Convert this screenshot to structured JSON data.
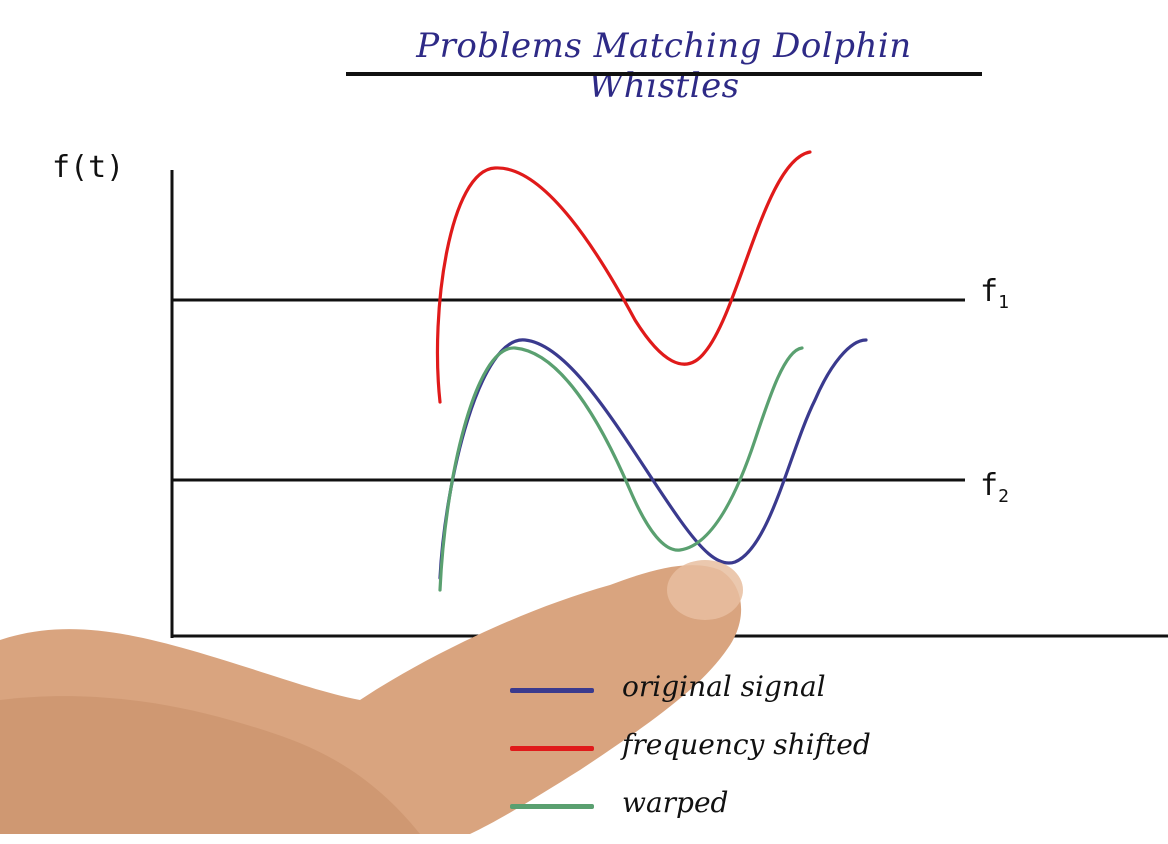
{
  "diagram": {
    "title": "Problems Matching Dolphin Whistles",
    "y_axis_label": "f(t)",
    "reference_lines": [
      {
        "label": "f",
        "subscript": "1"
      },
      {
        "label": "f",
        "subscript": "2"
      }
    ],
    "legend": [
      {
        "label": "original signal",
        "color": "#3a3a8e"
      },
      {
        "label": "frequency shifted",
        "color": "#e01a1a"
      },
      {
        "label": "warped",
        "color": "#5aa070"
      }
    ],
    "axis_color": "#111111"
  }
}
